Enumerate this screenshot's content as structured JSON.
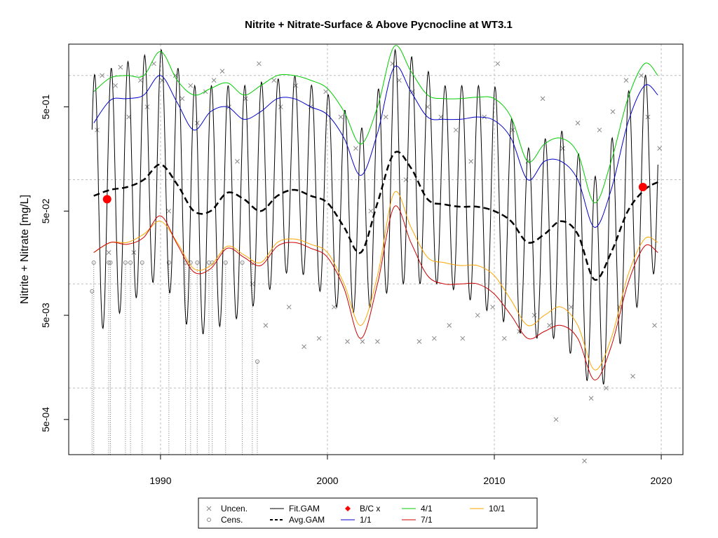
{
  "chart_data": {
    "type": "line",
    "title": "Nitrite + Nitrate-Surface & Above Pycnocline at WT3.1",
    "xlabel": "",
    "ylabel": "Nitrite + Nitrate [mg/L]",
    "y_scale": "log",
    "xlim": [
      1984.5,
      2021.3
    ],
    "ylim": [
      0.00023,
      2.0
    ],
    "x_ticks": [
      1990,
      2000,
      2010,
      2020
    ],
    "x_tick_labels": [
      "1990",
      "2000",
      "2010",
      "2020"
    ],
    "y_ticks": [
      0.0005,
      0.005,
      0.05,
      0.5
    ],
    "y_tick_labels": [
      "5e-04",
      "5e-03",
      "5e-02",
      "5e-01"
    ],
    "y_gridlines": [
      0.001,
      0.01,
      0.1,
      1.0
    ],
    "x_gridlines": [
      1990,
      2000,
      2010,
      2020
    ],
    "grid": true,
    "legend_placement": "bottom",
    "legend": [
      {
        "label": "Uncen.",
        "kind": "x-marker",
        "color": "#888888"
      },
      {
        "label": "Fit.GAM",
        "kind": "line",
        "color": "#000000",
        "dash": "solid"
      },
      {
        "label": "B/C x",
        "kind": "diamond",
        "color": "#ff0000"
      },
      {
        "label": "4/1",
        "kind": "line",
        "color": "#00cc00",
        "dash": "solid"
      },
      {
        "label": "10/1",
        "kind": "line",
        "color": "#ffa500",
        "dash": "solid"
      },
      {
        "label": "Cens.",
        "kind": "circle-marker",
        "color": "#888888"
      },
      {
        "label": "Avg.GAM",
        "kind": "line",
        "color": "#000000",
        "dash": "dashed"
      },
      {
        "label": "1/1",
        "kind": "line",
        "color": "#0000cc",
        "dash": "solid"
      },
      {
        "label": "7/1",
        "kind": "line",
        "color": "#cc0000",
        "dash": "solid"
      }
    ],
    "series": [
      {
        "name": "Avg.GAM",
        "color": "#000000",
        "dash": "dashed",
        "x": [
          1986.0,
          1987.0,
          1988.0,
          1989.0,
          1990.0,
          1991.0,
          1992.0,
          1993.0,
          1994.0,
          1995.0,
          1996.0,
          1997.0,
          1998.0,
          1999.0,
          2000.0,
          2001.0,
          2002.0,
          2003.0,
          2004.0,
          2005.0,
          2006.0,
          2007.0,
          2008.0,
          2009.0,
          2010.0,
          2011.0,
          2012.0,
          2013.0,
          2014.0,
          2015.0,
          2016.0,
          2017.0,
          2018.0,
          2019.0,
          2019.8
        ],
        "y": [
          0.07,
          0.08,
          0.085,
          0.1,
          0.14,
          0.09,
          0.05,
          0.05,
          0.075,
          0.065,
          0.05,
          0.07,
          0.08,
          0.07,
          0.06,
          0.035,
          0.02,
          0.06,
          0.18,
          0.13,
          0.065,
          0.058,
          0.055,
          0.055,
          0.05,
          0.04,
          0.025,
          0.03,
          0.04,
          0.03,
          0.011,
          0.02,
          0.05,
          0.08,
          0.095
        ]
      },
      {
        "name": "4/1",
        "color": "#00cc00",
        "dash": "solid",
        "x": [
          1986.0,
          1987.0,
          1988.0,
          1989.0,
          1990.0,
          1991.0,
          1992.0,
          1993.0,
          1994.0,
          1995.0,
          1996.0,
          1997.0,
          1998.0,
          1999.0,
          2000.0,
          2001.0,
          2002.0,
          2003.0,
          2004.0,
          2005.0,
          2006.0,
          2007.0,
          2008.0,
          2009.0,
          2010.0,
          2011.0,
          2012.0,
          2013.0,
          2014.0,
          2015.0,
          2016.0,
          2017.0,
          2018.0,
          2019.0,
          2019.8
        ],
        "y": [
          0.7,
          0.95,
          1.0,
          1.0,
          1.7,
          0.9,
          0.65,
          0.75,
          0.85,
          0.65,
          0.8,
          1.0,
          1.0,
          0.9,
          0.75,
          0.45,
          0.22,
          0.5,
          1.9,
          1.1,
          0.65,
          0.6,
          0.6,
          0.62,
          0.6,
          0.4,
          0.15,
          0.22,
          0.25,
          0.18,
          0.06,
          0.15,
          0.6,
          1.3,
          1.0
        ]
      },
      {
        "name": "1/1",
        "color": "#0000cc",
        "dash": "solid",
        "x": [
          1986.0,
          1987.0,
          1988.0,
          1989.0,
          1990.0,
          1991.0,
          1992.0,
          1993.0,
          1994.0,
          1995.0,
          1996.0,
          1997.0,
          1998.0,
          1999.0,
          2000.0,
          2001.0,
          2002.0,
          2003.0,
          2004.0,
          2005.0,
          2006.0,
          2007.0,
          2008.0,
          2009.0,
          2010.0,
          2011.0,
          2012.0,
          2013.0,
          2014.0,
          2015.0,
          2016.0,
          2017.0,
          2018.0,
          2019.0,
          2019.8
        ],
        "y": [
          0.35,
          0.58,
          0.6,
          0.65,
          1.0,
          0.55,
          0.3,
          0.45,
          0.5,
          0.38,
          0.45,
          0.6,
          0.6,
          0.5,
          0.42,
          0.25,
          0.11,
          0.28,
          1.2,
          0.7,
          0.4,
          0.38,
          0.38,
          0.4,
          0.37,
          0.25,
          0.1,
          0.15,
          0.15,
          0.1,
          0.035,
          0.08,
          0.35,
          0.8,
          0.65
        ]
      },
      {
        "name": "10/1",
        "color": "#ffa500",
        "dash": "solid",
        "x": [
          1986.0,
          1987.0,
          1988.0,
          1989.0,
          1990.0,
          1991.0,
          1992.0,
          1993.0,
          1994.0,
          1995.0,
          1996.0,
          1997.0,
          1998.0,
          1999.0,
          2000.0,
          2001.0,
          2002.0,
          2003.0,
          2004.0,
          2005.0,
          2006.0,
          2007.0,
          2008.0,
          2009.0,
          2010.0,
          2011.0,
          2012.0,
          2013.0,
          2014.0,
          2015.0,
          2016.0,
          2017.0,
          2018.0,
          2019.0,
          2019.8
        ],
        "y": [
          0.02,
          0.025,
          0.025,
          0.03,
          0.04,
          0.025,
          0.014,
          0.015,
          0.023,
          0.019,
          0.016,
          0.025,
          0.027,
          0.024,
          0.02,
          0.01,
          0.004,
          0.012,
          0.075,
          0.035,
          0.018,
          0.016,
          0.015,
          0.015,
          0.012,
          0.007,
          0.004,
          0.005,
          0.006,
          0.004,
          0.0015,
          0.003,
          0.012,
          0.027,
          0.025
        ]
      },
      {
        "name": "7/1",
        "color": "#cc0000",
        "dash": "solid",
        "x": [
          1986.0,
          1987.0,
          1988.0,
          1989.0,
          1990.0,
          1991.0,
          1992.0,
          1993.0,
          1994.0,
          1995.0,
          1996.0,
          1997.0,
          1998.0,
          1999.0,
          2000.0,
          2001.0,
          2002.0,
          2003.0,
          2004.0,
          2005.0,
          2006.0,
          2007.0,
          2008.0,
          2009.0,
          2010.0,
          2011.0,
          2012.0,
          2013.0,
          2014.0,
          2015.0,
          2016.0,
          2017.0,
          2018.0,
          2019.0,
          2019.8
        ],
        "y": [
          0.02,
          0.025,
          0.024,
          0.028,
          0.045,
          0.024,
          0.013,
          0.014,
          0.022,
          0.018,
          0.015,
          0.023,
          0.025,
          0.022,
          0.018,
          0.009,
          0.003,
          0.01,
          0.055,
          0.025,
          0.012,
          0.01,
          0.01,
          0.01,
          0.008,
          0.005,
          0.003,
          0.0035,
          0.004,
          0.003,
          0.0012,
          0.0025,
          0.01,
          0.023,
          0.02
        ]
      }
    ],
    "fit_gam": {
      "name": "Fit.GAM",
      "color": "#000000",
      "x_start": 1985.9,
      "x_end": 2019.8,
      "segments": [
        {
          "x": 1985.9,
          "peak": 1.0,
          "trough": 0.003
        },
        {
          "x": 1990.0,
          "peak": 1.8,
          "trough": 0.012
        },
        {
          "x": 1992.0,
          "peak": 0.8,
          "trough": 0.003
        },
        {
          "x": 1995.0,
          "peak": 0.8,
          "trough": 0.005
        },
        {
          "x": 1998.0,
          "peak": 1.0,
          "trough": 0.015
        },
        {
          "x": 2000.5,
          "peak": 0.6,
          "trough": 0.006
        },
        {
          "x": 2002.0,
          "peak": 0.3,
          "trough": 0.005
        },
        {
          "x": 2004.2,
          "peak": 2.0,
          "trough": 0.01
        },
        {
          "x": 2007.0,
          "peak": 0.8,
          "trough": 0.01
        },
        {
          "x": 2010.0,
          "peak": 0.8,
          "trough": 0.005
        },
        {
          "x": 2012.0,
          "peak": 0.2,
          "trough": 0.003
        },
        {
          "x": 2014.0,
          "peak": 0.3,
          "trough": 0.003
        },
        {
          "x": 2016.2,
          "peak": 0.1,
          "trough": 0.0008
        },
        {
          "x": 2018.0,
          "peak": 0.7,
          "trough": 0.004
        },
        {
          "x": 2019.8,
          "peak": 1.3,
          "trough": 0.015
        }
      ]
    },
    "bc_points": [
      {
        "x": 1986.8,
        "y": 0.065
      },
      {
        "x": 2018.9,
        "y": 0.085
      }
    ],
    "uncensored_points": [
      {
        "x": 1986.2,
        "y": 0.3
      },
      {
        "x": 1986.5,
        "y": 1.0
      },
      {
        "x": 1986.9,
        "y": 0.02
      },
      {
        "x": 1987.3,
        "y": 0.8
      },
      {
        "x": 1987.6,
        "y": 1.2
      },
      {
        "x": 1988.1,
        "y": 0.4
      },
      {
        "x": 1988.4,
        "y": 0.02
      },
      {
        "x": 1988.8,
        "y": 0.9
      },
      {
        "x": 1989.2,
        "y": 0.5
      },
      {
        "x": 1989.6,
        "y": 1.3
      },
      {
        "x": 1990.1,
        "y": 0.9
      },
      {
        "x": 1990.5,
        "y": 0.05
      },
      {
        "x": 1990.9,
        "y": 1.0
      },
      {
        "x": 1991.3,
        "y": 0.6
      },
      {
        "x": 1991.8,
        "y": 0.8
      },
      {
        "x": 1992.2,
        "y": 0.35
      },
      {
        "x": 1992.7,
        "y": 0.7
      },
      {
        "x": 1993.2,
        "y": 0.9
      },
      {
        "x": 1993.7,
        "y": 1.1
      },
      {
        "x": 1994.1,
        "y": 0.5
      },
      {
        "x": 1994.6,
        "y": 0.15
      },
      {
        "x": 1995.1,
        "y": 0.6
      },
      {
        "x": 1995.5,
        "y": 0.01
      },
      {
        "x": 1995.9,
        "y": 1.3
      },
      {
        "x": 1996.3,
        "y": 0.004
      },
      {
        "x": 1996.8,
        "y": 0.9
      },
      {
        "x": 1997.2,
        "y": 0.5
      },
      {
        "x": 1997.7,
        "y": 0.006
      },
      {
        "x": 1998.1,
        "y": 0.8
      },
      {
        "x": 1998.6,
        "y": 0.0025
      },
      {
        "x": 1999.0,
        "y": 0.5
      },
      {
        "x": 1999.5,
        "y": 0.003
      },
      {
        "x": 1999.9,
        "y": 0.7
      },
      {
        "x": 2000.4,
        "y": 0.006
      },
      {
        "x": 2000.8,
        "y": 0.4
      },
      {
        "x": 2001.2,
        "y": 0.0028
      },
      {
        "x": 2001.7,
        "y": 0.2
      },
      {
        "x": 2002.1,
        "y": 0.0028
      },
      {
        "x": 2002.6,
        "y": 0.05
      },
      {
        "x": 2003.0,
        "y": 0.0028
      },
      {
        "x": 2003.5,
        "y": 0.4
      },
      {
        "x": 2003.9,
        "y": 1.3
      },
      {
        "x": 2004.3,
        "y": 0.9
      },
      {
        "x": 2004.7,
        "y": 0.1
      },
      {
        "x": 2005.1,
        "y": 0.7
      },
      {
        "x": 2005.5,
        "y": 0.0028
      },
      {
        "x": 2006.0,
        "y": 0.5
      },
      {
        "x": 2006.4,
        "y": 0.003
      },
      {
        "x": 2006.8,
        "y": 0.4
      },
      {
        "x": 2007.3,
        "y": 0.004
      },
      {
        "x": 2007.7,
        "y": 0.3
      },
      {
        "x": 2008.1,
        "y": 0.003
      },
      {
        "x": 2008.6,
        "y": 0.15
      },
      {
        "x": 2009.0,
        "y": 0.005
      },
      {
        "x": 2009.4,
        "y": 0.4
      },
      {
        "x": 2009.9,
        "y": 0.006
      },
      {
        "x": 2010.2,
        "y": 1.3
      },
      {
        "x": 2010.6,
        "y": 0.003
      },
      {
        "x": 2011.1,
        "y": 0.3
      },
      {
        "x": 2011.5,
        "y": 0.0035
      },
      {
        "x": 2012.0,
        "y": 0.15
      },
      {
        "x": 2012.4,
        "y": 0.005
      },
      {
        "x": 2012.9,
        "y": 0.6
      },
      {
        "x": 2013.3,
        "y": 0.004
      },
      {
        "x": 2013.7,
        "y": 0.0005
      },
      {
        "x": 2014.1,
        "y": 0.2
      },
      {
        "x": 2014.6,
        "y": 0.006
      },
      {
        "x": 2015.0,
        "y": 0.35
      },
      {
        "x": 2015.4,
        "y": 0.0002
      },
      {
        "x": 2015.8,
        "y": 0.0008
      },
      {
        "x": 2016.3,
        "y": 0.3
      },
      {
        "x": 2016.7,
        "y": 0.001
      },
      {
        "x": 2017.1,
        "y": 0.45
      },
      {
        "x": 2017.5,
        "y": 0.006
      },
      {
        "x": 2017.9,
        "y": 0.9
      },
      {
        "x": 2018.3,
        "y": 0.0013
      },
      {
        "x": 2018.8,
        "y": 1.0
      },
      {
        "x": 2019.2,
        "y": 0.4
      },
      {
        "x": 2019.6,
        "y": 0.004
      },
      {
        "x": 2019.9,
        "y": 0.2
      }
    ],
    "censored_points": [
      {
        "x": 1985.9,
        "y": 0.0085
      },
      {
        "x": 1986.0,
        "y": 0.016
      },
      {
        "x": 1986.9,
        "y": 0.016
      },
      {
        "x": 1987.0,
        "y": 0.016
      },
      {
        "x": 1987.9,
        "y": 0.016
      },
      {
        "x": 1988.2,
        "y": 0.016
      },
      {
        "x": 1988.9,
        "y": 0.016
      },
      {
        "x": 1990.5,
        "y": 0.016
      },
      {
        "x": 1991.5,
        "y": 0.016
      },
      {
        "x": 1991.8,
        "y": 0.016
      },
      {
        "x": 1992.2,
        "y": 0.016
      },
      {
        "x": 1992.9,
        "y": 0.016
      },
      {
        "x": 1993.1,
        "y": 0.016
      },
      {
        "x": 1993.9,
        "y": 0.016
      },
      {
        "x": 1994.9,
        "y": 0.016
      },
      {
        "x": 1995.5,
        "y": 0.016
      },
      {
        "x": 1995.8,
        "y": 0.0018
      }
    ]
  }
}
